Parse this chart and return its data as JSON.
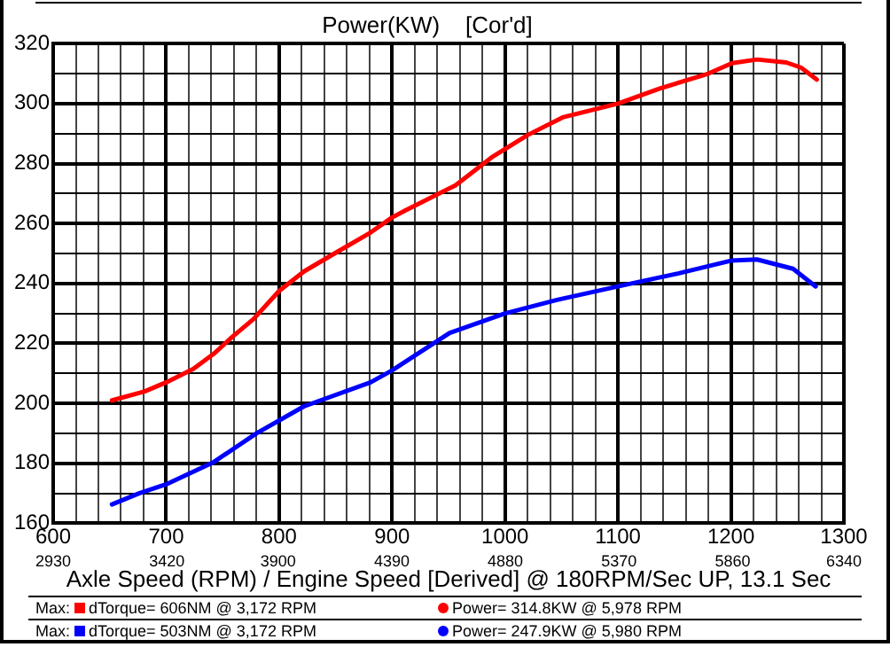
{
  "chart_data": {
    "type": "line",
    "title": "Power(KW)    [Cor'd]",
    "xlabel": "Axle Speed (RPM) / Engine Speed [Derived] @ 180RPM/Sec UP, 13.1 Sec",
    "xlim": [
      600,
      1300
    ],
    "xticks": [
      600,
      {
        "value": 620,
        "label": null
      },
      {
        "value": 640,
        "label": null
      },
      {
        "value": 660,
        "label": null
      },
      {
        "value": 680,
        "label": null
      },
      700,
      {
        "value": 720,
        "label": null
      },
      {
        "value": 740,
        "label": null
      },
      {
        "value": 760,
        "label": null
      },
      {
        "value": 780,
        "label": null
      },
      800,
      {
        "value": 820,
        "label": null
      },
      {
        "value": 840,
        "label": null
      },
      {
        "value": 860,
        "label": null
      },
      {
        "value": 880,
        "label": null
      },
      900,
      {
        "value": 920,
        "label": null
      },
      {
        "value": 940,
        "label": null
      },
      {
        "value": 960,
        "label": null
      },
      {
        "value": 980,
        "label": null
      },
      1000,
      {
        "value": 1020,
        "label": null
      },
      {
        "value": 1040,
        "label": null
      },
      {
        "value": 1060,
        "label": null
      },
      {
        "value": 1080,
        "label": null
      },
      1100,
      {
        "value": 1120,
        "label": null
      },
      {
        "value": 1140,
        "label": null
      },
      {
        "value": 1160,
        "label": null
      },
      {
        "value": 1180,
        "label": null
      },
      1200,
      {
        "value": 1220,
        "label": null
      },
      {
        "value": 1240,
        "label": null
      },
      {
        "value": 1260,
        "label": null
      },
      {
        "value": 1280,
        "label": null
      },
      1300
    ],
    "x2lim": [
      2930,
      6340
    ],
    "x2ticks": [
      2930,
      3420,
      3900,
      4390,
      4880,
      5370,
      5860,
      6340
    ],
    "ylim": [
      160,
      320
    ],
    "yticks": [
      160,
      {
        "value": 170,
        "label": null
      },
      180,
      {
        "value": 190,
        "label": null
      },
      200,
      {
        "value": 210,
        "label": null
      },
      220,
      {
        "value": 230,
        "label": null
      },
      240,
      {
        "value": 250,
        "label": null
      },
      260,
      {
        "value": 270,
        "label": null
      },
      280,
      {
        "value": 290,
        "label": null
      },
      300,
      {
        "value": 310,
        "label": null
      },
      320
    ],
    "grid": true,
    "legend": false,
    "marker": "none",
    "line_style": "solid",
    "series": [
      {
        "color": "#ff0000",
        "x": [
          652,
          681,
          700,
          724,
          742,
          758,
          777,
          800,
          822,
          849,
          881,
          900,
          912,
          956,
          988,
          1020,
          1051,
          1100,
          1137,
          1180,
          1201,
          1223,
          1249,
          1262,
          1276
        ],
        "values": [
          201,
          204,
          207,
          211.5,
          216.5,
          222,
          228,
          237.5,
          244,
          250,
          257,
          262,
          264.4,
          272.7,
          282,
          289.5,
          295.4,
          300,
          305,
          310,
          313.5,
          314.7,
          313.7,
          312,
          308
        ]
      },
      {
        "color": "#0000ff",
        "x": [
          652,
          676,
          700,
          742,
          780,
          822,
          881,
          900,
          951,
          1000,
          1046,
          1100,
          1153,
          1200,
          1223,
          1255,
          1275
        ],
        "values": [
          166.3,
          170,
          173,
          180.4,
          190,
          199,
          207,
          211,
          223.5,
          230,
          234.5,
          239,
          243.3,
          247.6,
          248,
          244.9,
          239
        ]
      }
    ],
    "annotations": [
      "Max:",
      "dTorque= 606NM @ 3,172 RPM",
      "Power= 314.8KW @ 5,978 RPM",
      "Max:",
      "dTorque= 503NM @ 3,172 RPM",
      "Power= 247.9KW @ 5,980 RPM"
    ]
  }
}
